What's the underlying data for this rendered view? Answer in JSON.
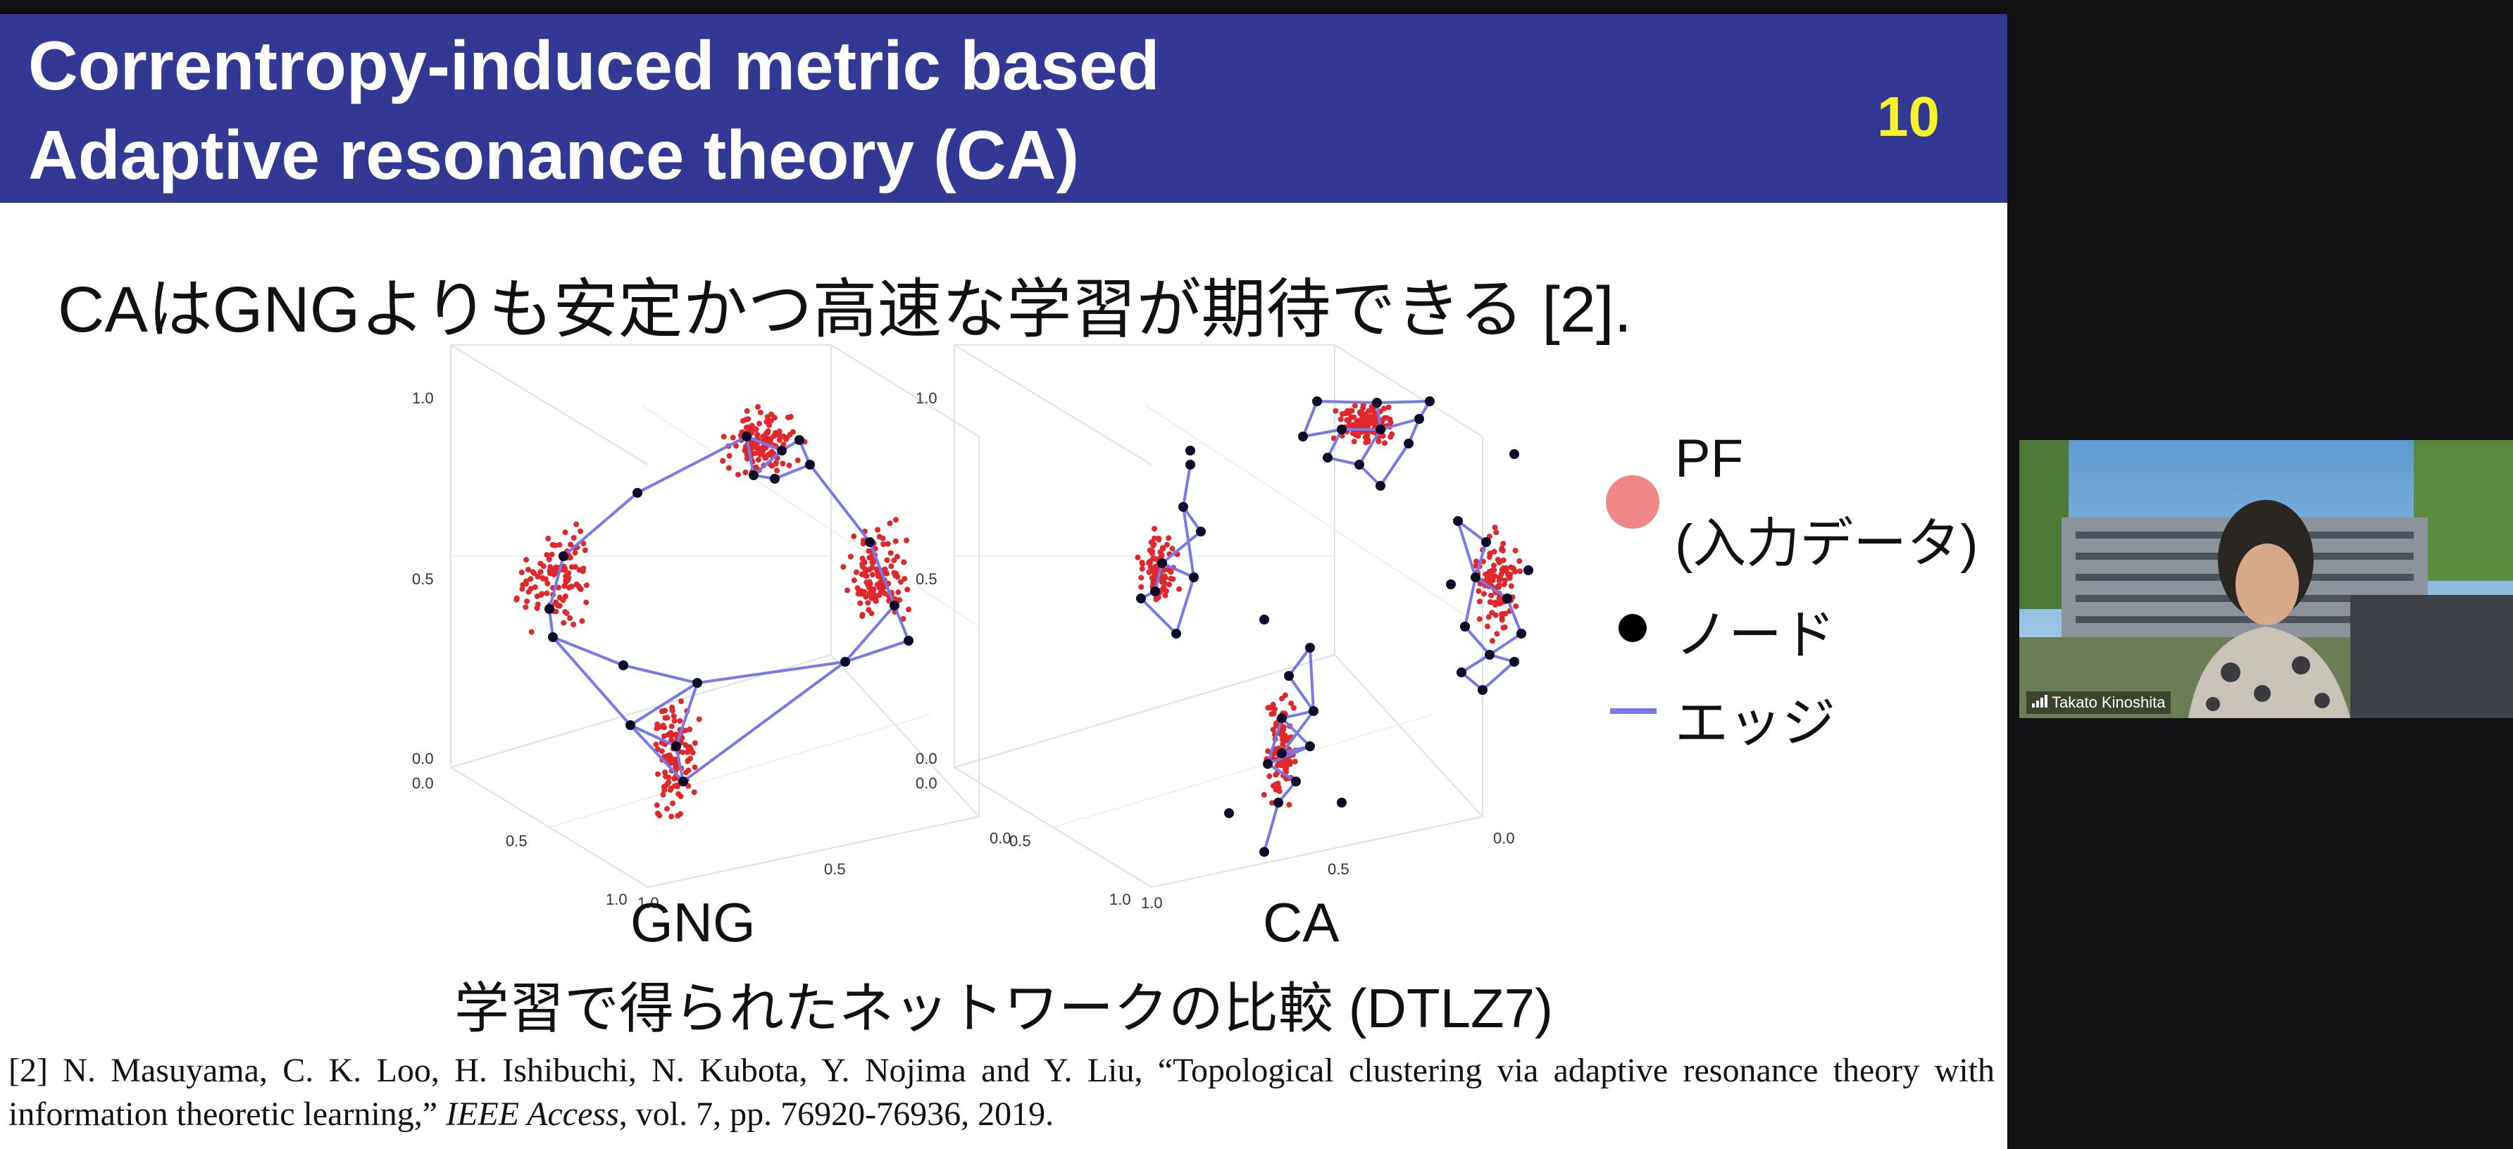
{
  "slide": {
    "title_line1": "Correntropy-induced metric based",
    "title_line2": "Adaptive resonance theory (CA)",
    "page_number": "10",
    "headline": "CAはGNGよりも安定かつ高速な学習が期待できる [2].",
    "plot_label_gng": "GNG",
    "plot_label_ca": "CA",
    "caption": "学習で得られたネットワークの比較 (DTLZ7)",
    "legend": {
      "pf_line1": "PF",
      "pf_line2": "(入力データ)",
      "node": "ノード",
      "edge": "エッジ"
    },
    "reference": {
      "prefix": "[2] N. Masuyama, C. K. Loo, H. Ishibuchi, N. Kubota, Y. Nojima and Y. Liu, “Topological clustering via adaptive resonance theory with information theoretic learning,”",
      "journal": "IEEE Access",
      "suffix": ", vol. 7, pp. 76920-76936, 2019."
    }
  },
  "axis_ticks": {
    "z": [
      "1.0",
      "0.5",
      "0.0"
    ],
    "x": [
      "0.0",
      "0.5",
      "1.0"
    ],
    "y": [
      "1.0",
      "0.5",
      "0.0"
    ]
  },
  "colors": {
    "header": "#343895",
    "page_number": "#f6f22a",
    "pf_point": "#e0282c",
    "node": "#0b0b2a",
    "edge": "#7878e8"
  },
  "video": {
    "participant_name": "Takato Kinoshita",
    "icon": "signal-bars-icon"
  }
}
